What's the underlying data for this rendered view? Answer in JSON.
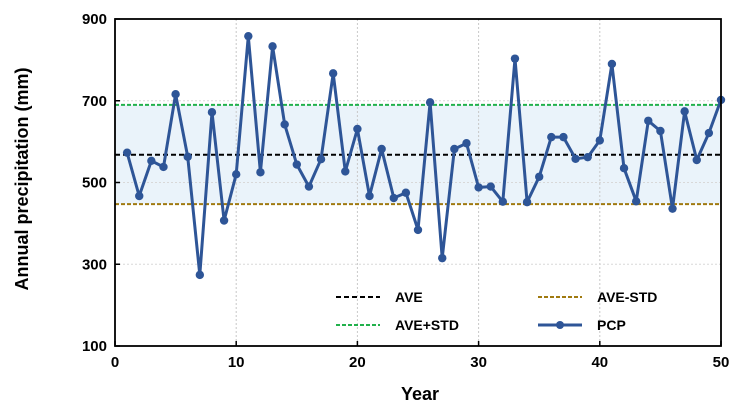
{
  "chart_data": {
    "type": "line",
    "title": "",
    "xlabel": "Year",
    "ylabel": "Annual  precipitation (mm)",
    "xlim": [
      0,
      50
    ],
    "ylim": [
      100,
      900
    ],
    "xticks": [
      0,
      10,
      20,
      30,
      40,
      50
    ],
    "yticks": [
      100,
      300,
      500,
      700,
      900
    ],
    "grid": "vertical dotted gridlines",
    "legend_position": "bottom",
    "band": {
      "lower": 447,
      "upper": 690,
      "color": "#eaf3fa"
    },
    "series": [
      {
        "name": "PCP",
        "color": "#2e5597",
        "marker": "circle",
        "x": [
          1,
          2,
          3,
          4,
          5,
          6,
          7,
          8,
          9,
          10,
          11,
          12,
          13,
          14,
          15,
          16,
          17,
          18,
          19,
          20,
          21,
          22,
          23,
          24,
          25,
          26,
          27,
          28,
          29,
          30,
          31,
          32,
          33,
          34,
          35,
          36,
          37,
          38,
          39,
          40,
          41,
          42,
          43,
          44,
          45,
          46,
          47,
          48,
          49,
          50
        ],
        "values": [
          573,
          467,
          553,
          538,
          716,
          563,
          274,
          672,
          407,
          520,
          858,
          525,
          833,
          642,
          544,
          490,
          557,
          767,
          527,
          631,
          467,
          582,
          462,
          475,
          384,
          696,
          315,
          582,
          596,
          488,
          490,
          453,
          803,
          452,
          514,
          611,
          611,
          558,
          562,
          603,
          790,
          535,
          454,
          651,
          626,
          436,
          674,
          555,
          621,
          702
        ]
      },
      {
        "name": "AVE",
        "color": "#000000",
        "style": "dashed",
        "value": 568
      },
      {
        "name": "AVE+STD",
        "color": "#22b14c",
        "style": "dashed",
        "value": 690
      },
      {
        "name": "AVE-STD",
        "color": "#a07a10",
        "style": "dashed",
        "value": 447
      }
    ]
  }
}
